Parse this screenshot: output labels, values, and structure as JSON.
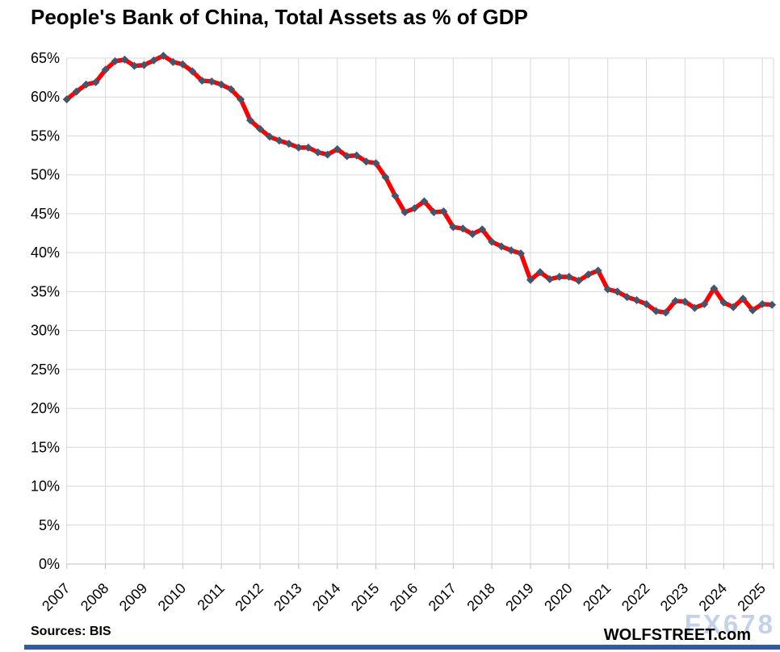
{
  "page": {
    "title": "People's Bank of China, Total Assets as % of GDP",
    "source_note": "Sources: BIS",
    "brand": "WOLFSTREET.com",
    "watermark": "FX678",
    "colors": {
      "line": "#FF0000",
      "marker": "#44546A",
      "grid": "#D9D9D9",
      "axis": "#BFBFBF",
      "text": "#000000",
      "watermark_text": "#C3D2EA",
      "bottom_bar": "#2E5B9F"
    }
  },
  "chart_data": {
    "type": "line",
    "title": "People's Bank of China, Total Assets as % of GDP",
    "frequency": "quarterly",
    "start_period": "2007-Q1",
    "end_period": "2025-Q2",
    "x_tick_labels": [
      "2007",
      "2008",
      "2009",
      "2010",
      "2011",
      "2012",
      "2013",
      "2014",
      "2015",
      "2016",
      "2017",
      "2018",
      "2019",
      "2020",
      "2021",
      "2022",
      "2023",
      "2024",
      "2025"
    ],
    "y_tick_labels": [
      "0%",
      "5%",
      "10%",
      "15%",
      "20%",
      "25%",
      "30%",
      "35%",
      "40%",
      "45%",
      "50%",
      "55%",
      "60%",
      "65%"
    ],
    "ylim": [
      0,
      65
    ],
    "grid": true,
    "legend": false,
    "series": [
      {
        "name": "PBoC total assets as % of GDP",
        "values": [
          59.7,
          60.7,
          61.6,
          61.9,
          63.5,
          64.6,
          64.8,
          64.0,
          64.1,
          64.7,
          65.3,
          64.5,
          64.2,
          63.3,
          62.1,
          62.0,
          61.6,
          61.0,
          59.7,
          57.0,
          55.9,
          54.9,
          54.4,
          54.0,
          53.5,
          53.5,
          52.9,
          52.6,
          53.3,
          52.4,
          52.5,
          51.7,
          51.5,
          49.7,
          47.3,
          45.2,
          45.7,
          46.6,
          45.2,
          45.3,
          43.3,
          43.1,
          42.4,
          43.0,
          41.4,
          40.8,
          40.3,
          39.9,
          36.5,
          37.5,
          36.6,
          36.9,
          36.9,
          36.4,
          37.2,
          37.7,
          35.3,
          35.0,
          34.3,
          33.9,
          33.4,
          32.5,
          32.3,
          33.8,
          33.7,
          32.9,
          33.4,
          35.4,
          33.6,
          33.0,
          34.1,
          32.6,
          33.4,
          33.3
        ]
      }
    ]
  }
}
